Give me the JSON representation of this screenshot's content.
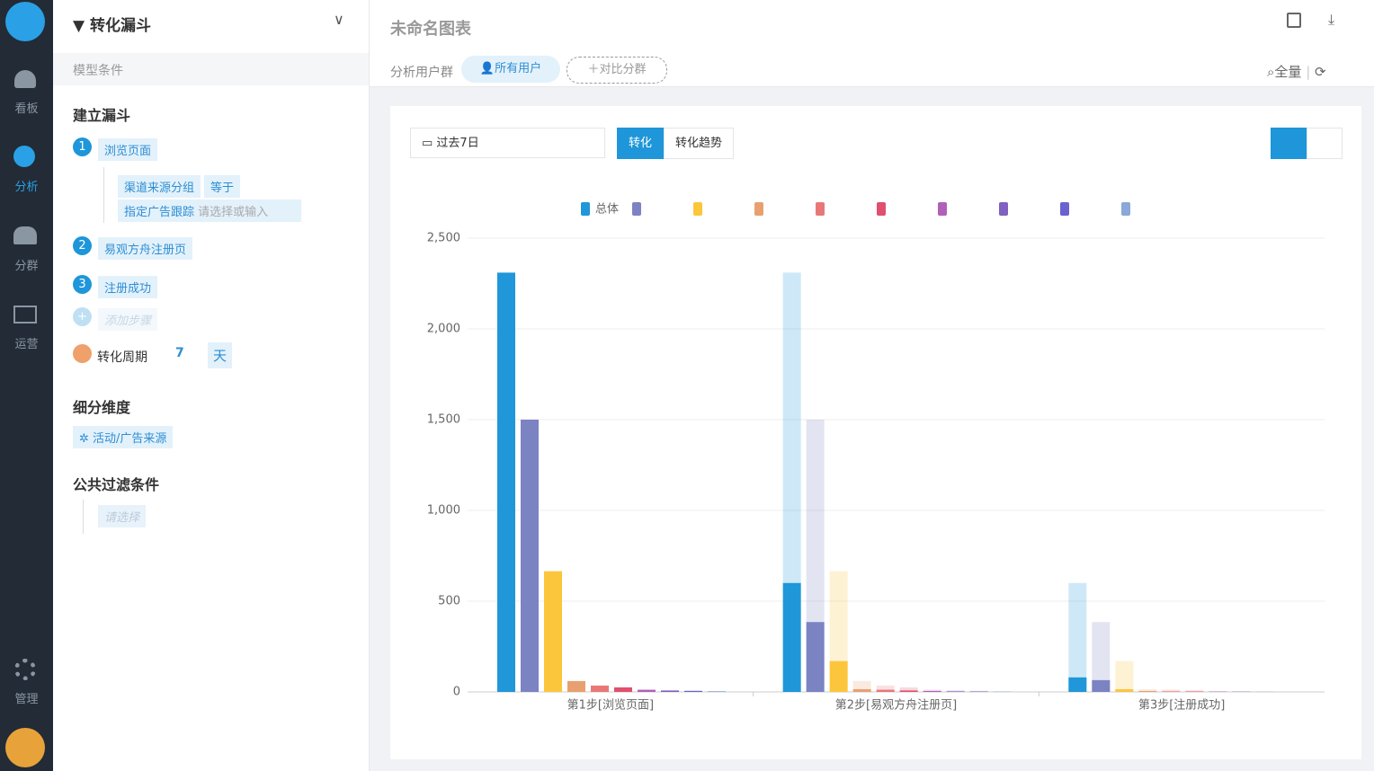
{
  "nav": [
    "看板",
    "分析",
    "分群",
    "运营",
    "管理"
  ],
  "panel": {
    "title": "转化漏斗",
    "model": "模型条件",
    "build": "建立漏斗",
    "steps": [
      {
        "num": "1",
        "label": "浏览页面"
      },
      {
        "num": "2",
        "label": "易观方舟注册页"
      },
      {
        "num": "3",
        "label": "注册成功"
      }
    ],
    "filter": {
      "field": "渠道来源分组",
      "op": "等于",
      "value": "指定广告跟踪",
      "placeholder": "请选择或输入"
    },
    "add_step": "添加步骤",
    "window": {
      "label": "转化周期",
      "num": "7",
      "unit": "天"
    },
    "breakdown": "细分维度",
    "breakdown_value": "活动/广告来源",
    "global_filter": "公共过滤条件",
    "global_placeholder": "请选择"
  },
  "header": {
    "title": "未命名图表",
    "group_label": "分析用户群",
    "group": "所有用户",
    "compare": "对比分群",
    "scope": "全量"
  },
  "toolbar": {
    "date": "过去7日",
    "tabs": [
      "转化",
      "转化趋势"
    ]
  },
  "chart_data": {
    "type": "bar",
    "categories": [
      "第1步[浏览页面]",
      "第2步[易观方舟注册页]",
      "第3步[注册成功]"
    ],
    "series": [
      {
        "name": "总体",
        "color": "#1f97d9",
        "values": [
          2310,
          600,
          80
        ]
      },
      {
        "color": "#7b83c3",
        "values": [
          1500,
          385,
          65
        ]
      },
      {
        "color": "#fcc63c",
        "values": [
          665,
          170,
          15
        ]
      },
      {
        "color": "#e8a070",
        "values": [
          60,
          15,
          5
        ]
      },
      {
        "color": "#e87878",
        "values": [
          35,
          12,
          3
        ]
      },
      {
        "color": "#e0506e",
        "values": [
          25,
          8,
          2
        ]
      },
      {
        "color": "#b060b8",
        "values": [
          12,
          5,
          1
        ]
      },
      {
        "color": "#8060c0",
        "values": [
          8,
          3,
          1
        ]
      },
      {
        "color": "#6a62d0",
        "values": [
          6,
          2,
          0
        ]
      },
      {
        "color": "#8aa8d8",
        "values": [
          4,
          1,
          0
        ]
      }
    ],
    "ylim": [
      0,
      2500
    ],
    "yticks": [
      0,
      500,
      {
        "value": 1000,
        "label": "1,000"
      },
      {
        "value": 1500,
        "label": "1,500"
      },
      {
        "value": 2000,
        "label": "2,000"
      },
      {
        "value": 2500,
        "label": "2,500"
      }
    ],
    "grid": true
  }
}
